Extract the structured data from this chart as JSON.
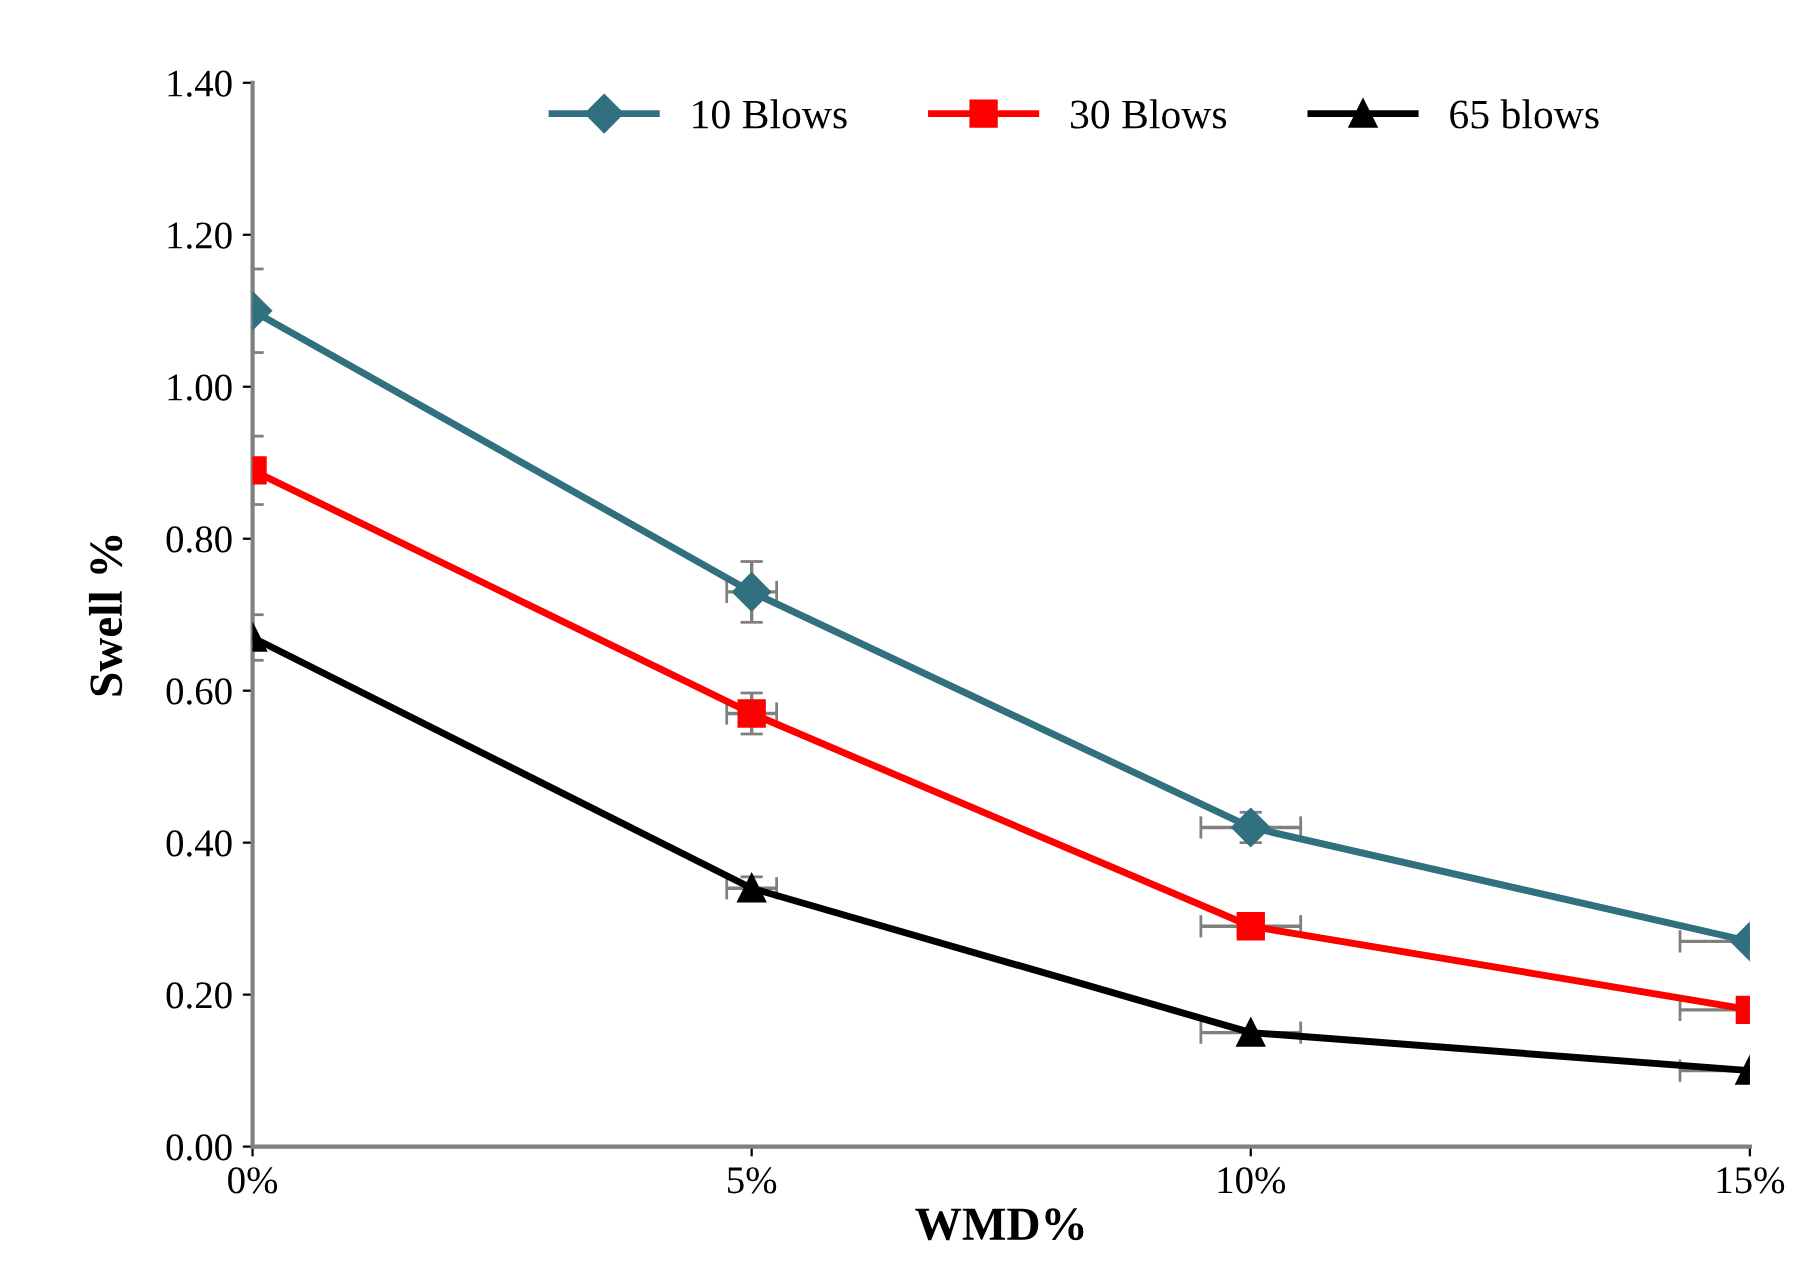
{
  "chart_data": {
    "type": "line",
    "xlabel": "WMD%",
    "ylabel": "Swell %",
    "x": [
      0,
      5,
      10,
      15
    ],
    "xlim": [
      0,
      15
    ],
    "xticks": [
      {
        "value": 0,
        "label": "0%"
      },
      {
        "value": 5,
        "label": "5%"
      },
      {
        "value": 10,
        "label": "10%"
      },
      {
        "value": 15,
        "label": "15%"
      }
    ],
    "ylim": [
      0,
      1.4
    ],
    "yticks": [
      {
        "value": 0,
        "label": "0.00"
      },
      {
        "value": 0.2,
        "label": "0.20"
      },
      {
        "value": 0.4,
        "label": "0.40"
      },
      {
        "value": 0.6,
        "label": "0.60"
      },
      {
        "value": 0.8,
        "label": "0.80"
      },
      {
        "value": 1.0,
        "label": "1.00"
      },
      {
        "value": 1.2,
        "label": "1.20"
      },
      {
        "value": 1.4,
        "label": "1.40"
      }
    ],
    "grid": false,
    "legend": "top",
    "series": [
      {
        "name": "10 Blows",
        "color": "#31707f",
        "marker": "diamond",
        "values": [
          1.1,
          0.73,
          0.42,
          0.27
        ],
        "errors": [
          0.055,
          0.04,
          0.02,
          null
        ],
        "xerrors": [
          null,
          0.25,
          0.5,
          [
            14.3,
            15
          ]
        ]
      },
      {
        "name": "30 Blows",
        "color": "#ff0000",
        "marker": "square",
        "values": [
          0.89,
          0.57,
          0.29,
          0.18
        ],
        "errors": [
          0.045,
          0.027,
          null,
          null
        ],
        "xerrors": [
          null,
          0.25,
          0.5,
          [
            14.3,
            15
          ]
        ]
      },
      {
        "name": "65 blows",
        "color": "#000000",
        "marker": "triangle",
        "values": [
          0.67,
          0.34,
          0.15,
          0.1
        ],
        "errors": [
          0.03,
          0.015,
          null,
          null
        ],
        "xerrors": [
          null,
          0.25,
          0.5,
          [
            14.3,
            15
          ]
        ]
      }
    ]
  }
}
